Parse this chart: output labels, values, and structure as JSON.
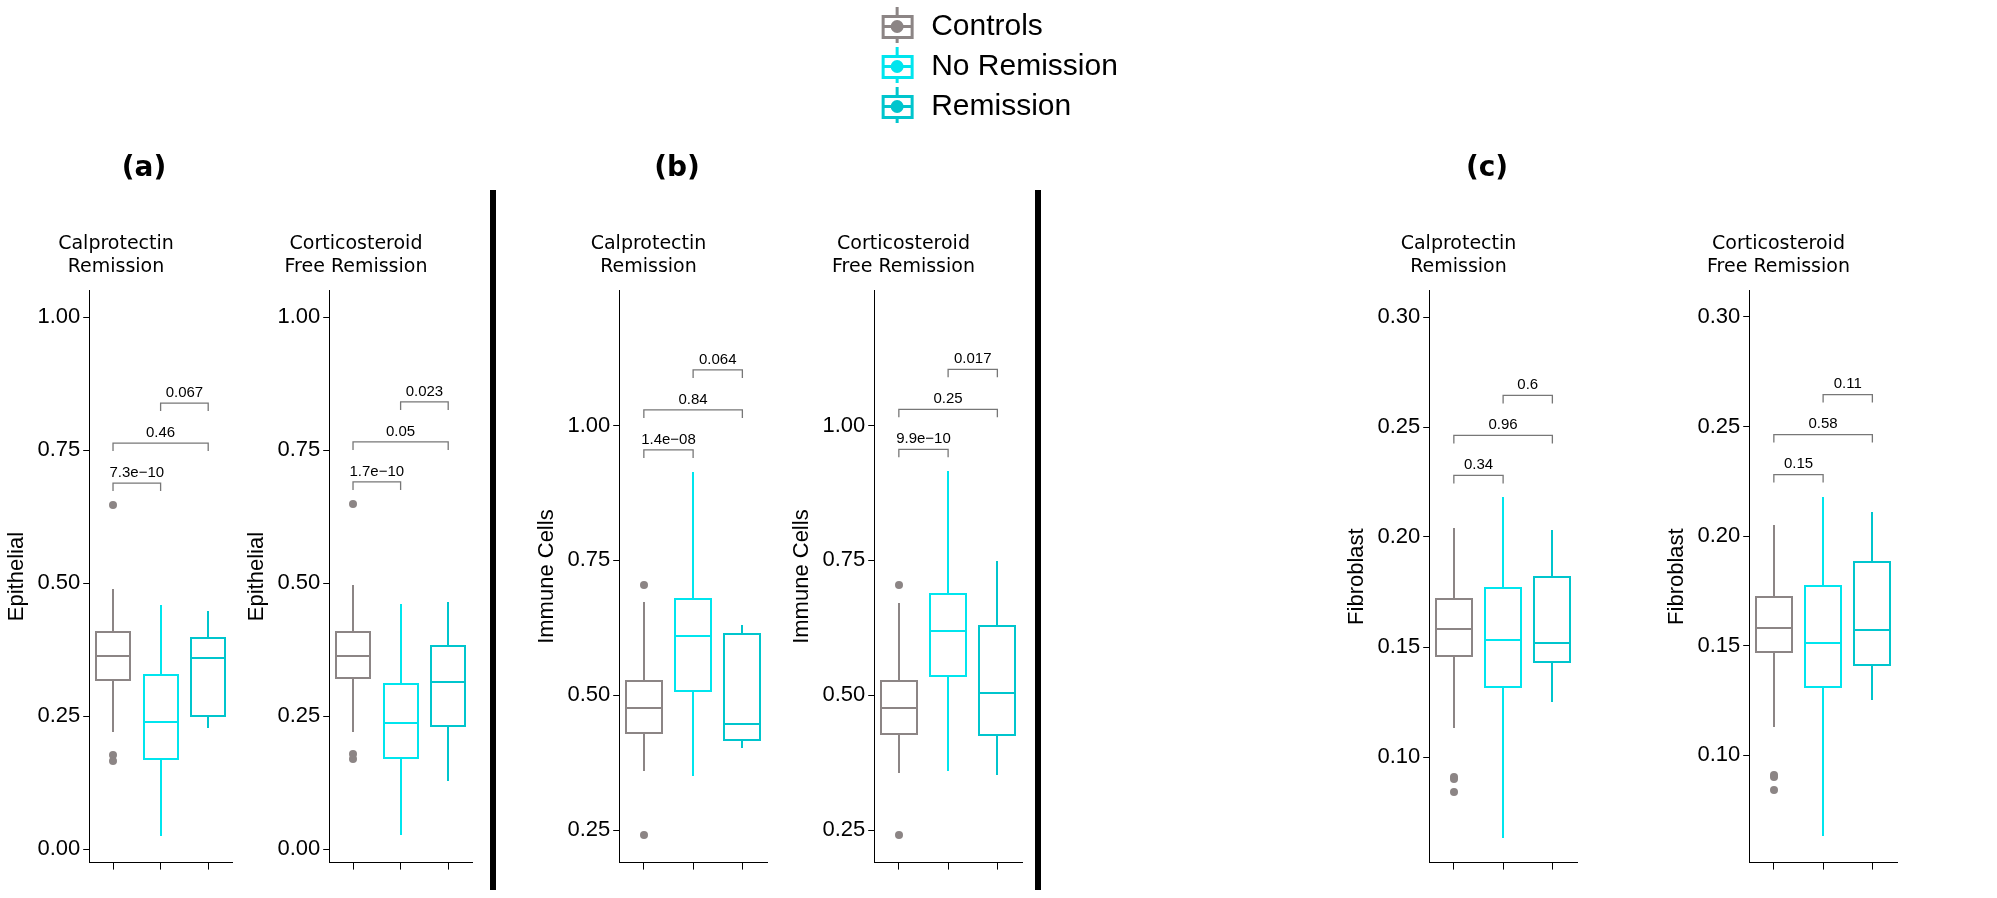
{
  "chart_data": [
    {
      "type": "box",
      "title": "(a)",
      "subtitle": "Calprotectin Remission",
      "ylabel": "Epithelial",
      "legend": "top",
      "grid": false,
      "categories": [
        null,
        null,
        null
      ],
      "ylim": [
        -0.025,
        1.05
      ],
      "yticks": [
        {
          "value": 0,
          "label": "0.00"
        },
        {
          "value": 0.25,
          "label": "0.25"
        },
        {
          "value": 0.5,
          "label": "0.50"
        },
        {
          "value": 0.75,
          "label": "0.75"
        },
        {
          "value": 1,
          "label": "1.00"
        }
      ],
      "annotations": [
        "7.3e−10",
        "0.46",
        "0.067"
      ],
      "series": [
        {
          "name": "Controls",
          "color": "#8c8585",
          "boxes": [
            {
              "low": 0.22,
              "q1": 0.319,
              "median": 0.363,
              "q3": 0.408,
              "high": 0.49,
              "outliers": [
                0.647,
                0.177,
                0.166
              ]
            },
            null,
            null
          ]
        },
        {
          "name": "No Remission",
          "color": "#00e5ee",
          "boxes": [
            null,
            {
              "low": 0.025,
              "q1": 0.169,
              "median": 0.24,
              "q3": 0.327,
              "high": 0.46
            },
            null
          ]
        },
        {
          "name": "Remission",
          "color": "#00c5cd",
          "boxes": [
            null,
            null,
            {
              "low": 0.228,
              "q1": 0.251,
              "median": 0.36,
              "q3": 0.397,
              "high": 0.447
            }
          ]
        }
      ]
    },
    {
      "type": "box",
      "subtitle": "Corticosteroid Free Remission",
      "ylabel": "Epithelial",
      "grid": false,
      "categories": [
        null,
        null,
        null
      ],
      "ylim": [
        -0.025,
        1.05
      ],
      "yticks": [
        {
          "value": 0,
          "label": "0.00"
        },
        {
          "value": 0.25,
          "label": "0.25"
        },
        {
          "value": 0.5,
          "label": "0.50"
        },
        {
          "value": 0.75,
          "label": "0.75"
        },
        {
          "value": 1,
          "label": "1.00"
        }
      ],
      "annotations": [
        "1.7e−10",
        "0.05",
        "0.023"
      ],
      "series": [
        {
          "color": "#8c8585",
          "boxes": [
            {
              "low": 0.221,
              "q1": 0.321,
              "median": 0.364,
              "q3": 0.409,
              "high": 0.496,
              "outliers": [
                0.649,
                0.18,
                0.169
              ]
            },
            null,
            null
          ]
        },
        {
          "color": "#00e5ee",
          "boxes": [
            null,
            {
              "low": 0.026,
              "q1": 0.171,
              "median": 0.238,
              "q3": 0.311,
              "high": 0.461
            },
            null
          ]
        },
        {
          "color": "#00c5cd",
          "boxes": [
            null,
            null,
            {
              "low": 0.128,
              "q1": 0.232,
              "median": 0.315,
              "q3": 0.382,
              "high": 0.465
            }
          ]
        }
      ]
    },
    {
      "type": "box",
      "title": "(b)",
      "subtitle": "Calprotectin Remission",
      "ylabel": "Immune Cells",
      "grid": false,
      "categories": [
        null,
        null,
        null
      ],
      "ylim": [
        0.19,
        1.25
      ],
      "yticks": [
        {
          "value": 0.25,
          "label": "0.25"
        },
        {
          "value": 0.5,
          "label": "0.50"
        },
        {
          "value": 0.75,
          "label": "0.75"
        },
        {
          "value": 1,
          "label": "1.00"
        }
      ],
      "annotations": [
        "1.4e−08",
        "0.84",
        "0.064"
      ],
      "series": [
        {
          "color": "#8c8585",
          "boxes": [
            {
              "low": 0.36,
              "q1": 0.43,
              "median": 0.477,
              "q3": 0.527,
              "high": 0.673,
              "outliers": [
                0.705,
                0.242
              ]
            },
            null,
            null
          ]
        },
        {
          "color": "#00e5ee",
          "boxes": [
            null,
            {
              "low": 0.351,
              "q1": 0.508,
              "median": 0.609,
              "q3": 0.679,
              "high": 0.914
            },
            null
          ]
        },
        {
          "color": "#00c5cd",
          "boxes": [
            null,
            null,
            {
              "low": 0.402,
              "q1": 0.417,
              "median": 0.447,
              "q3": 0.614,
              "high": 0.63
            }
          ]
        }
      ]
    },
    {
      "type": "box",
      "subtitle": "Corticosteroid Free Remission",
      "ylabel": "Immune Cells",
      "grid": false,
      "categories": [
        null,
        null,
        null
      ],
      "ylim": [
        0.19,
        1.25
      ],
      "yticks": [
        {
          "value": 0.25,
          "label": "0.25"
        },
        {
          "value": 0.5,
          "label": "0.50"
        },
        {
          "value": 0.75,
          "label": "0.75"
        },
        {
          "value": 1,
          "label": "1.00"
        }
      ],
      "annotations": [
        "9.9e−10",
        "0.25",
        "0.017"
      ],
      "series": [
        {
          "color": "#8c8585",
          "boxes": [
            {
              "low": 0.356,
              "q1": 0.429,
              "median": 0.477,
              "q3": 0.526,
              "high": 0.671,
              "outliers": [
                0.704,
                0.241
              ]
            },
            null,
            null
          ]
        },
        {
          "color": "#00e5ee",
          "boxes": [
            null,
            {
              "low": 0.36,
              "q1": 0.535,
              "median": 0.619,
              "q3": 0.687,
              "high": 0.915
            },
            null
          ]
        },
        {
          "color": "#00c5cd",
          "boxes": [
            null,
            null,
            {
              "low": 0.352,
              "q1": 0.426,
              "median": 0.505,
              "q3": 0.629,
              "high": 0.748
            }
          ]
        }
      ]
    },
    {
      "type": "box",
      "title": "(c)",
      "subtitle": "Calprotectin Remission",
      "ylabel": "Fibroblast",
      "grid": false,
      "categories": [
        null,
        null,
        null
      ],
      "ylim": [
        0.052,
        0.312
      ],
      "yticks": [
        {
          "value": 0.1,
          "label": "0.10"
        },
        {
          "value": 0.15,
          "label": "0.15"
        },
        {
          "value": 0.2,
          "label": "0.20"
        },
        {
          "value": 0.25,
          "label": "0.25"
        },
        {
          "value": 0.3,
          "label": "0.30"
        }
      ],
      "annotations": [
        "0.34",
        "0.96",
        "0.6"
      ],
      "series": [
        {
          "color": "#8c8585",
          "boxes": [
            {
              "low": 0.113,
              "q1": 0.146,
              "median": 0.158,
              "q3": 0.172,
              "high": 0.204,
              "outliers": [
                0.091,
                0.09,
                0.084
              ]
            },
            null,
            null
          ]
        },
        {
          "color": "#00e5ee",
          "boxes": [
            null,
            {
              "low": 0.063,
              "q1": 0.132,
              "median": 0.153,
              "q3": 0.177,
              "high": 0.218
            },
            null
          ]
        },
        {
          "color": "#00c5cd",
          "boxes": [
            null,
            null,
            {
              "low": 0.125,
              "q1": 0.143,
              "median": 0.152,
              "q3": 0.182,
              "high": 0.203
            }
          ]
        }
      ]
    },
    {
      "type": "box",
      "subtitle": "Corticosteroid Free Remission",
      "ylabel": "Fibroblast",
      "grid": false,
      "categories": [
        null,
        null,
        null
      ],
      "ylim": [
        0.051,
        0.312
      ],
      "yticks": [
        {
          "value": 0.1,
          "label": "0.10"
        },
        {
          "value": 0.15,
          "label": "0.15"
        },
        {
          "value": 0.2,
          "label": "0.20"
        },
        {
          "value": 0.25,
          "label": "0.25"
        },
        {
          "value": 0.3,
          "label": "0.30"
        }
      ],
      "annotations": [
        "0.15",
        "0.58",
        "0.11"
      ],
      "series": [
        {
          "color": "#8c8585",
          "boxes": [
            {
              "low": 0.113,
              "q1": 0.147,
              "median": 0.158,
              "q3": 0.172,
              "high": 0.205,
              "outliers": [
                0.091,
                0.09,
                0.084
              ]
            },
            null,
            null
          ]
        },
        {
          "color": "#00e5ee",
          "boxes": [
            null,
            {
              "low": 0.063,
              "q1": 0.131,
              "median": 0.151,
              "q3": 0.177,
              "high": 0.218
            },
            null
          ]
        },
        {
          "color": "#00c5cd",
          "boxes": [
            null,
            null,
            {
              "low": 0.125,
              "q1": 0.141,
              "median": 0.157,
              "q3": 0.188,
              "high": 0.211
            }
          ]
        }
      ]
    }
  ]
}
